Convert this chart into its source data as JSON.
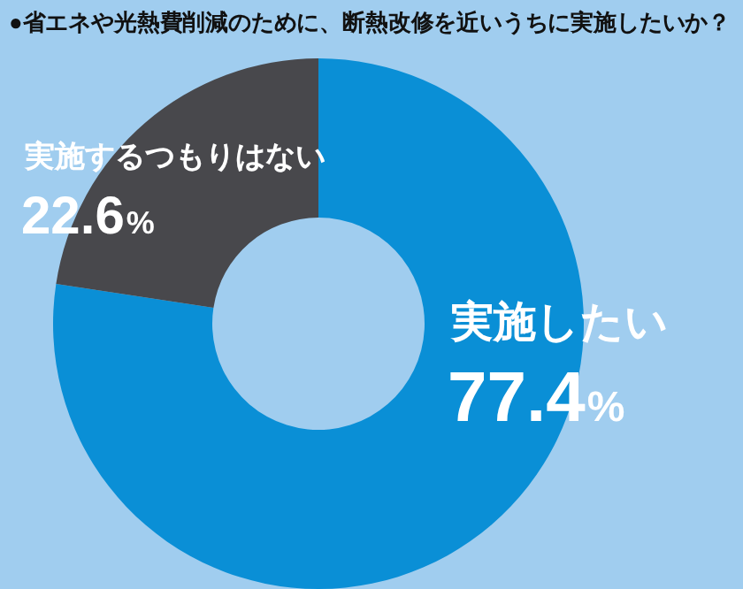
{
  "chart_data": {
    "type": "donut",
    "title": "●省エネや光熱費削減のために、断熱改修を近いうちに実施したいか？",
    "categories": [
      "実施したい",
      "実施するつもりはない"
    ],
    "values": [
      77.4,
      22.6
    ],
    "colors": [
      "#0a8fd6",
      "#48484c"
    ],
    "value_labels": [
      "77.4%",
      "22.6%"
    ]
  }
}
